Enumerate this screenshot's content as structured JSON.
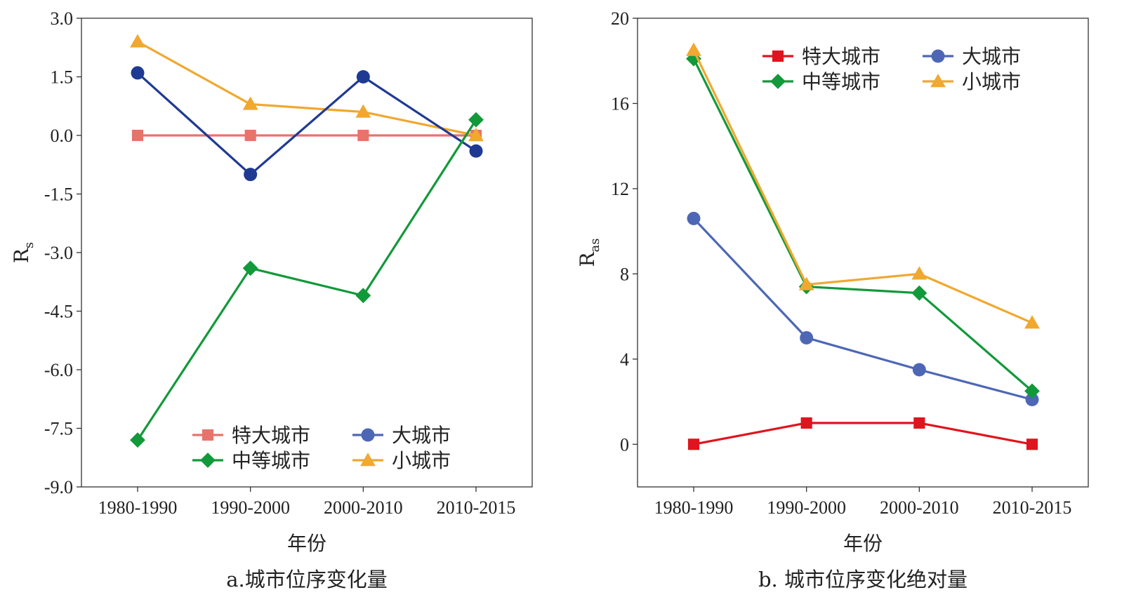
{
  "chart_data": [
    {
      "id": "a",
      "type": "line",
      "caption": "a.城市位序变化量",
      "xlabel": "年份",
      "ylabel_main": "R",
      "ylabel_sub": "s",
      "categories": [
        "1980-1990",
        "1990-2000",
        "2000-2010",
        "2010-2015"
      ],
      "ylim": [
        -9.0,
        3.0
      ],
      "yticks": [
        3.0,
        1.5,
        0.0,
        -1.5,
        -3.0,
        -4.5,
        -6.0,
        -7.5,
        -9.0
      ],
      "ytick_labels": [
        "3.0",
        "1.5",
        "0.0",
        "-1.5",
        "-3.0",
        "-4.5",
        "-6.0",
        "-7.5",
        "-9.0"
      ],
      "legend_position": "bottom-right",
      "series": [
        {
          "name": "特大城市",
          "marker": "square",
          "color": "#E8736B",
          "values": [
            0.0,
            0.0,
            0.0,
            0.0
          ]
        },
        {
          "name": "大城市",
          "marker": "circle",
          "color": "#1F3A93",
          "values": [
            1.6,
            -1.0,
            1.5,
            -0.4
          ]
        },
        {
          "name": "中等城市",
          "marker": "diamond",
          "color": "#12993A",
          "values": [
            -7.8,
            -3.4,
            -4.1,
            0.4
          ]
        },
        {
          "name": "小城市",
          "marker": "triangle",
          "color": "#F0A830",
          "values": [
            2.4,
            0.8,
            0.6,
            0.0
          ]
        }
      ],
      "legend_colors": [
        "#E8736B",
        "#4E67B5",
        "#12993A",
        "#F0A830"
      ]
    },
    {
      "id": "b",
      "type": "line",
      "caption": "b. 城市位序变化绝对量",
      "xlabel": "年份",
      "ylabel_main": "R",
      "ylabel_sub": "as",
      "categories": [
        "1980-1990",
        "1990-2000",
        "2000-2010",
        "2010-2015"
      ],
      "ylim": [
        -2,
        20
      ],
      "yticks": [
        20,
        16,
        12,
        8,
        4,
        0
      ],
      "ytick_labels": [
        "20",
        "16",
        "12",
        "8",
        "4",
        "0"
      ],
      "legend_position": "top-right",
      "series": [
        {
          "name": "特大城市",
          "marker": "square",
          "color": "#E0141E",
          "values": [
            0,
            1,
            1,
            0
          ]
        },
        {
          "name": "大城市",
          "marker": "circle",
          "color": "#4E67B5",
          "values": [
            10.6,
            5.0,
            3.5,
            2.1
          ]
        },
        {
          "name": "中等城市",
          "marker": "diamond",
          "color": "#12993A",
          "values": [
            18.1,
            7.4,
            7.1,
            2.5
          ]
        },
        {
          "name": "小城市",
          "marker": "triangle",
          "color": "#F0A830",
          "values": [
            18.5,
            7.5,
            8.0,
            5.7
          ]
        }
      ],
      "legend_colors": [
        "#E0141E",
        "#4E67B5",
        "#12993A",
        "#F0A830"
      ]
    }
  ]
}
